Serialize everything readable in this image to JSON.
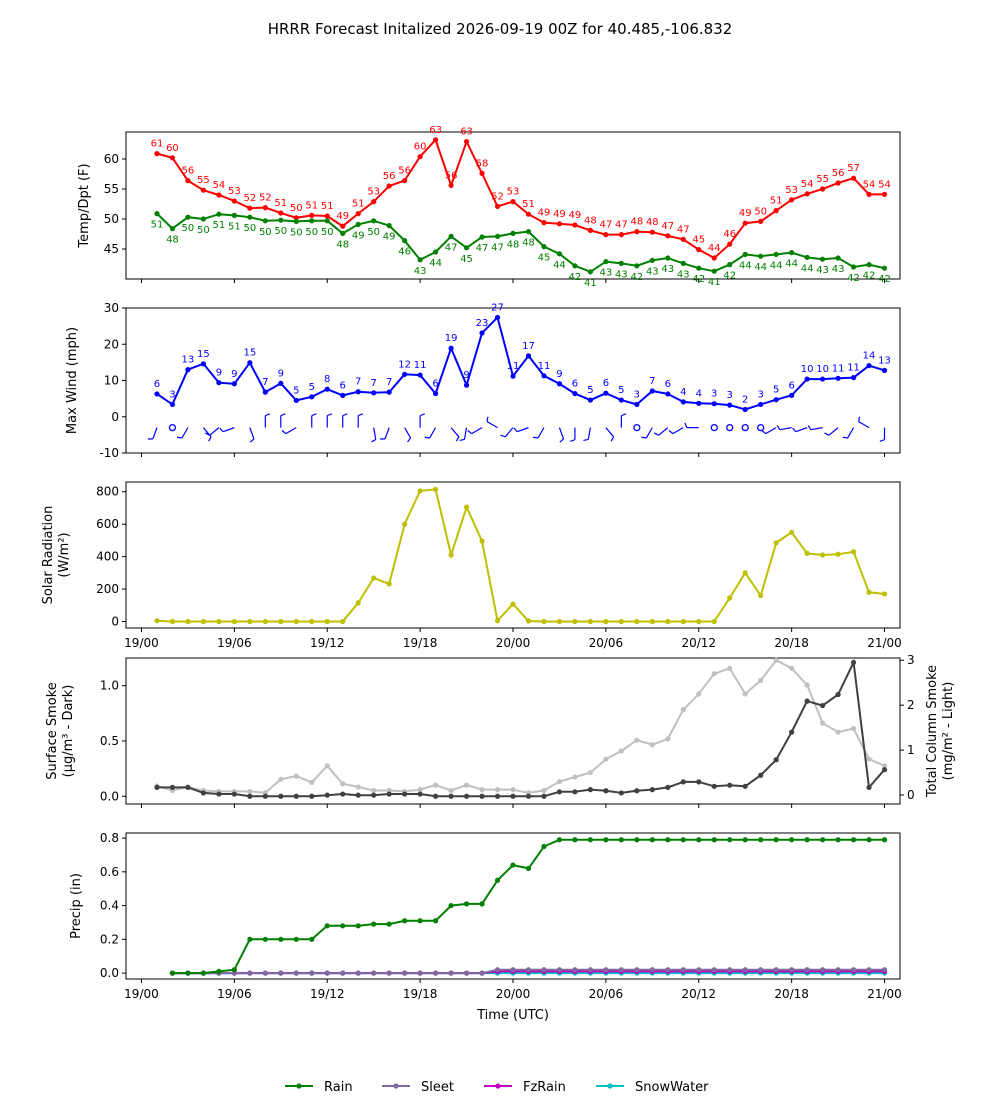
{
  "title": "HRRR Forecast Initalized 2026-09-19 00Z for 40.485,-106.832",
  "time_axis": {
    "label": "Time (UTC)",
    "ticks": [
      {
        "hour": 0,
        "label": "19/00"
      },
      {
        "hour": 6,
        "label": "19/06"
      },
      {
        "hour": 12,
        "label": "19/12"
      },
      {
        "hour": 18,
        "label": "19/18"
      },
      {
        "hour": 24,
        "label": "20/00"
      },
      {
        "hour": 30,
        "label": "20/06"
      },
      {
        "hour": 36,
        "label": "20/12"
      },
      {
        "hour": 42,
        "label": "20/18"
      },
      {
        "hour": 48,
        "label": "21/00"
      }
    ]
  },
  "legend": {
    "entries": [
      {
        "name": "Rain",
        "color": "#008000"
      },
      {
        "name": "Sleet",
        "color": "#8068a0"
      },
      {
        "name": "FzRain",
        "color": "#c000c0"
      },
      {
        "name": "SnowWater",
        "color": "#00bfbf"
      }
    ]
  },
  "chart_data": [
    {
      "type": "line",
      "ylabel": "Temp/Dpt (F)",
      "ylim": [
        40,
        64.5
      ],
      "yticks": [
        45,
        50,
        55,
        60
      ],
      "x": [
        1,
        2,
        3,
        4,
        5,
        6,
        7,
        8,
        9,
        10,
        11,
        12,
        13,
        14,
        15,
        16,
        17,
        18,
        19,
        20,
        21,
        22,
        23,
        24,
        25,
        26,
        27,
        28,
        29,
        30,
        31,
        32,
        33,
        34,
        35,
        36,
        37,
        38,
        39,
        40,
        41,
        42,
        43,
        44,
        45,
        46,
        47,
        48
      ],
      "series": [
        {
          "name": "Temperature",
          "color": "#ff0000",
          "values": [
            61,
            60,
            56,
            55,
            54,
            53,
            52,
            52,
            51,
            50,
            51,
            51,
            49,
            51,
            53,
            56,
            56,
            60,
            63,
            56,
            63,
            58,
            52,
            53,
            51,
            49,
            49,
            49,
            48,
            47,
            47,
            48,
            48,
            47,
            47,
            45,
            44,
            46,
            49,
            50,
            51,
            53,
            54,
            55,
            56,
            57,
            54,
            54
          ]
        },
        {
          "name": "Dew Point",
          "color": "#008000",
          "values": [
            51,
            48,
            50,
            50,
            51,
            51,
            50,
            50,
            50,
            50,
            50,
            50,
            48,
            49,
            50,
            49,
            46,
            43,
            44,
            47,
            45,
            47,
            47,
            48,
            48,
            45,
            44,
            42,
            41,
            43,
            43,
            42,
            43,
            43,
            43,
            42,
            41,
            42,
            44,
            44,
            44,
            44,
            44,
            43,
            43,
            42,
            42,
            42
          ]
        }
      ],
      "plot_values": {
        "Temperature": [
          60.9,
          60.2,
          56.4,
          54.8,
          54.0,
          53.0,
          51.8,
          51.9,
          51.0,
          50.2,
          50.6,
          50.5,
          48.8,
          50.9,
          52.9,
          55.5,
          56.4,
          60.4,
          63.2,
          55.6,
          62.9,
          57.6,
          52.1,
          52.9,
          50.8,
          49.4,
          49.2,
          49.0,
          48.1,
          47.4,
          47.4,
          47.9,
          47.8,
          47.2,
          46.6,
          44.9,
          43.5,
          45.8,
          49.3,
          49.6,
          51.4,
          53.2,
          54.2,
          55.0,
          56.0,
          56.8,
          54.1,
          54.1
        ],
        "Dew Point": [
          50.9,
          48.4,
          50.3,
          50.0,
          50.8,
          50.6,
          50.3,
          49.7,
          49.8,
          49.6,
          49.7,
          49.7,
          47.6,
          49.1,
          49.7,
          48.9,
          46.4,
          43.2,
          44.5,
          47.1,
          45.2,
          47.0,
          47.1,
          47.6,
          47.9,
          45.4,
          44.2,
          42.2,
          41.2,
          42.9,
          42.6,
          42.2,
          43.1,
          43.5,
          42.6,
          41.8,
          41.3,
          42.4,
          44.1,
          43.8,
          44.1,
          44.4,
          43.6,
          43.3,
          43.5,
          42.0,
          42.4,
          41.8
        ]
      }
    },
    {
      "type": "line",
      "ylabel": "Max Wind (mph)",
      "ylim": [
        -10,
        30
      ],
      "yticks": [
        -10,
        0,
        10,
        20,
        30
      ],
      "x": [
        1,
        2,
        3,
        4,
        5,
        6,
        7,
        8,
        9,
        10,
        11,
        12,
        13,
        14,
        15,
        16,
        17,
        18,
        19,
        20,
        21,
        22,
        23,
        24,
        25,
        26,
        27,
        28,
        29,
        30,
        31,
        32,
        33,
        34,
        35,
        36,
        37,
        38,
        39,
        40,
        41,
        42,
        43,
        44,
        45,
        46,
        47,
        48
      ],
      "series": [
        {
          "name": "Max Wind",
          "color": "#0000ff",
          "values": [
            6,
            3,
            13,
            15,
            9,
            9,
            15,
            7,
            9,
            5,
            5,
            8,
            6,
            7,
            7,
            7,
            12,
            11,
            6,
            19,
            9,
            23,
            27,
            11,
            17,
            11,
            9,
            6,
            5,
            6,
            5,
            3,
            7,
            6,
            4,
            4,
            3,
            3,
            2,
            3,
            5,
            6,
            10,
            10,
            11,
            11,
            14,
            13
          ]
        }
      ],
      "plot_values": [
        6.3,
        3.4,
        13.0,
        14.6,
        9.4,
        9.1,
        14.9,
        6.8,
        9.2,
        4.5,
        5.5,
        7.6,
        5.9,
        6.9,
        6.6,
        6.8,
        11.7,
        11.5,
        6.4,
        18.9,
        8.7,
        23.1,
        27.4,
        11.2,
        16.8,
        11.3,
        9.1,
        6.4,
        4.6,
        6.5,
        4.6,
        3.4,
        7.1,
        6.3,
        4.1,
        3.7,
        3.6,
        3.2,
        2.0,
        3.4,
        4.7,
        5.9,
        10.4,
        10.4,
        10.6,
        10.8,
        14.1,
        12.8
      ],
      "wind_barbs": true
    },
    {
      "type": "line",
      "ylabel": "Solar Radiation (W/m²)",
      "ylim": [
        -40,
        860
      ],
      "yticks": [
        0,
        200,
        400,
        600,
        800
      ],
      "x": [
        1,
        2,
        3,
        4,
        5,
        6,
        7,
        8,
        9,
        10,
        11,
        12,
        13,
        14,
        15,
        16,
        17,
        18,
        19,
        20,
        21,
        22,
        23,
        24,
        25,
        26,
        27,
        28,
        29,
        30,
        31,
        32,
        33,
        34,
        35,
        36,
        37,
        38,
        39,
        40,
        41,
        42,
        43,
        44,
        45,
        46,
        47,
        48
      ],
      "series": [
        {
          "name": "Solar Radiation",
          "color": "#bfbf00",
          "values": [
            5,
            0,
            0,
            0,
            0,
            0,
            0,
            0,
            0,
            0,
            0,
            0,
            0,
            115,
            268,
            232,
            600,
            805,
            815,
            410,
            705,
            495,
            5,
            108,
            3,
            0,
            0,
            0,
            0,
            0,
            0,
            0,
            0,
            0,
            0,
            0,
            0,
            145,
            300,
            160,
            485,
            550,
            420,
            410,
            415,
            430,
            180,
            170
          ]
        }
      ]
    },
    {
      "type": "line",
      "ylabel": "Surface Smoke (µg/m³ - Dark)",
      "ylabel2": "Total Column Smoke (mg/m² - Light)",
      "ylim": [
        -0.07,
        1.25
      ],
      "yticks": [
        0.0,
        0.5,
        1.0
      ],
      "ylim2": [
        -0.2,
        3.05
      ],
      "yticks2": [
        0,
        1,
        2,
        3
      ],
      "x": [
        1,
        2,
        3,
        4,
        5,
        6,
        7,
        8,
        9,
        10,
        11,
        12,
        13,
        14,
        15,
        16,
        17,
        18,
        19,
        20,
        21,
        22,
        23,
        24,
        25,
        26,
        27,
        28,
        29,
        30,
        31,
        32,
        33,
        34,
        35,
        36,
        37,
        38,
        39,
        40,
        41,
        42,
        43,
        44,
        45,
        46,
        47,
        48
      ],
      "series": [
        {
          "name": "Surface Smoke",
          "color": "#404040",
          "axis": "left",
          "values": [
            0.08,
            0.08,
            0.08,
            0.03,
            0.02,
            0.02,
            0.0,
            0.0,
            0.0,
            0.0,
            0.0,
            0.01,
            0.02,
            0.01,
            0.01,
            0.02,
            0.02,
            0.02,
            0.0,
            0.0,
            0.0,
            0.0,
            0.0,
            0.0,
            0.0,
            0.0,
            0.04,
            0.04,
            0.06,
            0.05,
            0.03,
            0.05,
            0.06,
            0.08,
            0.13,
            0.13,
            0.09,
            0.1,
            0.09,
            0.19,
            0.33,
            0.58,
            0.86,
            0.82,
            0.92,
            1.21,
            0.08,
            0.24
          ]
        },
        {
          "name": "Total Column Smoke",
          "color": "#c0c0c0",
          "axis": "right",
          "values": [
            0.2,
            0.1,
            0.18,
            0.1,
            0.08,
            0.08,
            0.08,
            0.05,
            0.35,
            0.42,
            0.28,
            0.65,
            0.25,
            0.18,
            0.1,
            0.1,
            0.08,
            0.12,
            0.22,
            0.1,
            0.22,
            0.12,
            0.12,
            0.12,
            0.05,
            0.1,
            0.3,
            0.4,
            0.5,
            0.8,
            0.98,
            1.22,
            1.12,
            1.25,
            1.9,
            2.25,
            2.7,
            2.82,
            2.25,
            2.55,
            3.0,
            2.82,
            2.45,
            1.6,
            1.4,
            1.48,
            0.8,
            0.65
          ]
        }
      ]
    },
    {
      "type": "line",
      "ylabel": "Precip (in)",
      "xlabel": "Time (UTC)",
      "ylim": [
        -0.035,
        0.83
      ],
      "yticks": [
        0.0,
        0.2,
        0.4,
        0.6,
        0.8
      ],
      "x": [
        2,
        3,
        4,
        5,
        6,
        7,
        8,
        9,
        10,
        11,
        12,
        13,
        14,
        15,
        16,
        17,
        18,
        19,
        20,
        21,
        22,
        23,
        24,
        25,
        26,
        27,
        28,
        29,
        30,
        31,
        32,
        33,
        34,
        35,
        36,
        37,
        38,
        39,
        40,
        41,
        42,
        43,
        44,
        45,
        46,
        47,
        48
      ],
      "series": [
        {
          "name": "Rain",
          "color": "#008000",
          "values": [
            0.0,
            0.0,
            0.0,
            0.01,
            0.02,
            0.2,
            0.2,
            0.2,
            0.2,
            0.2,
            0.28,
            0.28,
            0.28,
            0.29,
            0.29,
            0.31,
            0.31,
            0.31,
            0.4,
            0.41,
            0.41,
            0.55,
            0.64,
            0.62,
            0.75,
            0.79,
            0.79,
            0.79,
            0.79,
            0.79,
            0.79,
            0.79,
            0.79,
            0.79,
            0.79,
            0.79,
            0.79,
            0.79,
            0.79,
            0.79,
            0.79,
            0.79,
            0.79,
            0.79,
            0.79,
            0.79,
            0.79
          ]
        },
        {
          "name": "Sleet",
          "color": "#8068a0",
          "values": [
            0,
            0,
            0,
            0,
            0,
            0,
            0,
            0,
            0,
            0,
            0,
            0,
            0,
            0,
            0,
            0,
            0,
            0,
            0,
            0,
            0,
            0.02,
            0.02,
            0.02,
            0.02,
            0.02,
            0.02,
            0.02,
            0.02,
            0.02,
            0.02,
            0.02,
            0.02,
            0.02,
            0.02,
            0.02,
            0.02,
            0.02,
            0.02,
            0.02,
            0.02,
            0.02,
            0.02,
            0.02,
            0.02,
            0.02,
            0.02
          ]
        },
        {
          "name": "FzRain",
          "color": "#c000c0",
          "values": [
            0,
            0,
            0,
            0,
            0,
            0,
            0,
            0,
            0,
            0,
            0,
            0,
            0,
            0,
            0,
            0,
            0,
            0,
            0,
            0,
            0,
            0.01,
            0.01,
            0.01,
            0.01,
            0.01,
            0.01,
            0.01,
            0.01,
            0.01,
            0.01,
            0.01,
            0.01,
            0.01,
            0.01,
            0.01,
            0.01,
            0.01,
            0.01,
            0.01,
            0.01,
            0.01,
            0.01,
            0.01,
            0.01,
            0.01,
            0.01
          ]
        },
        {
          "name": "SnowWater",
          "color": "#00bfbf",
          "values": [
            0,
            0,
            0,
            0,
            0,
            0,
            0,
            0,
            0,
            0,
            0,
            0,
            0,
            0,
            0,
            0,
            0,
            0,
            0,
            0,
            0,
            0,
            0,
            0,
            0,
            0,
            0,
            0,
            0,
            0,
            0,
            0,
            0,
            0,
            0,
            0,
            0,
            0,
            0,
            0,
            0,
            0,
            0,
            0,
            0,
            0,
            0
          ]
        }
      ]
    }
  ]
}
